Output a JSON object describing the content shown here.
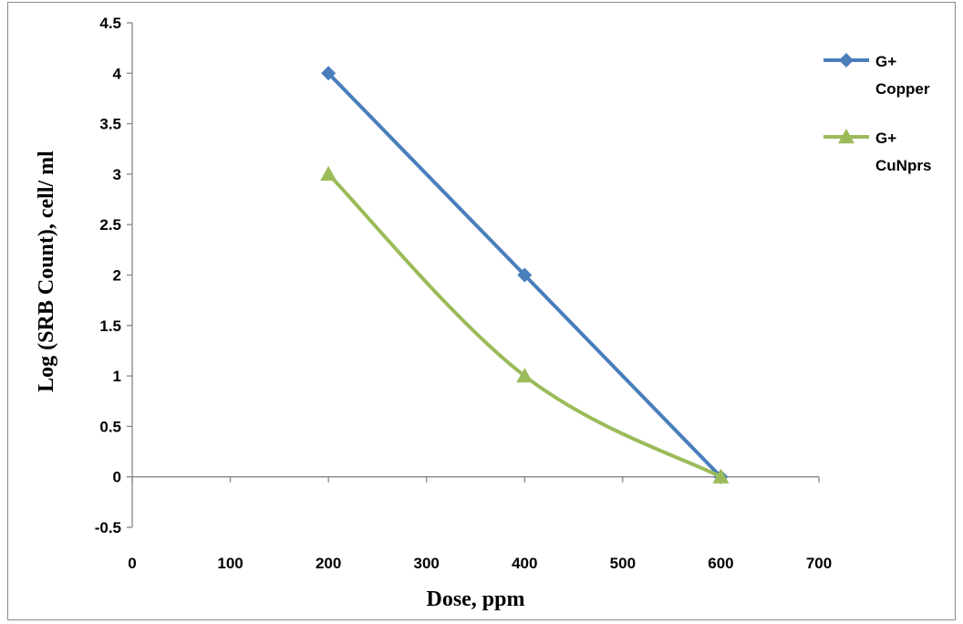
{
  "chart_data": {
    "type": "line",
    "title": "",
    "xlabel": "Dose, ppm",
    "ylabel": "Log (SRB Count), cell/ ml",
    "xlim": [
      0,
      700
    ],
    "ylim": [
      -0.5,
      4.5
    ],
    "x_ticks": [
      0,
      100,
      200,
      300,
      400,
      500,
      600,
      700
    ],
    "y_ticks": [
      -0.5,
      0,
      0.5,
      1,
      1.5,
      2,
      2.5,
      3,
      3.5,
      4,
      4.5
    ],
    "grid": false,
    "legend_position": "top-right",
    "series": [
      {
        "name_lines": [
          "G+",
          "Copper"
        ],
        "marker": "diamond",
        "color": "#4a7ebb",
        "x": [
          200,
          400,
          600
        ],
        "y": [
          4,
          2,
          0
        ]
      },
      {
        "name_lines": [
          "G+",
          "CuNprs"
        ],
        "marker": "triangle",
        "color": "#9bbb59",
        "x": [
          200,
          400,
          600
        ],
        "y": [
          3,
          1,
          0
        ]
      }
    ]
  }
}
